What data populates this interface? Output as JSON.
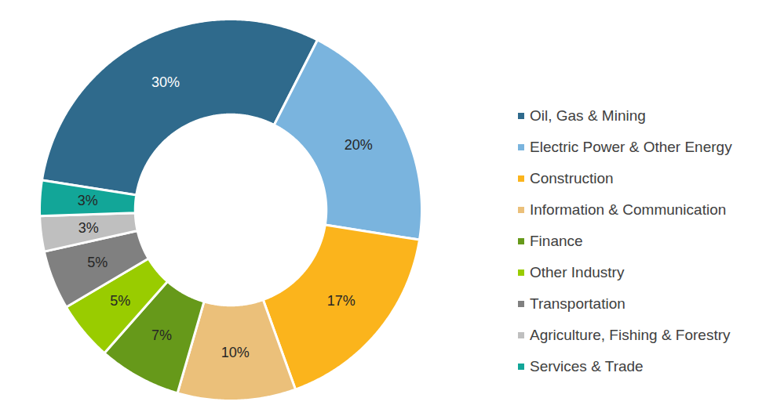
{
  "chart_data": {
    "type": "donut",
    "categories": [
      "Oil, Gas & Mining",
      "Electric Power & Other Energy",
      "Construction",
      "Information & Communication",
      "Finance",
      "Other Industry",
      "Transportation",
      "Agriculture, Fishing & Forestry",
      "Services & Trade"
    ],
    "values": [
      30,
      20,
      17,
      10,
      7,
      5,
      5,
      3,
      3
    ],
    "value_labels": [
      "30%",
      "20%",
      "17%",
      "10%",
      "7%",
      "5%",
      "5%",
      "3%",
      "3%"
    ],
    "colors": [
      "#2f6a8c",
      "#7ab4de",
      "#fbb41c",
      "#ebc07a",
      "#66991a",
      "#99cc00",
      "#808080",
      "#bfbfbf",
      "#12a698"
    ],
    "data_labels": true,
    "legend": "right"
  }
}
